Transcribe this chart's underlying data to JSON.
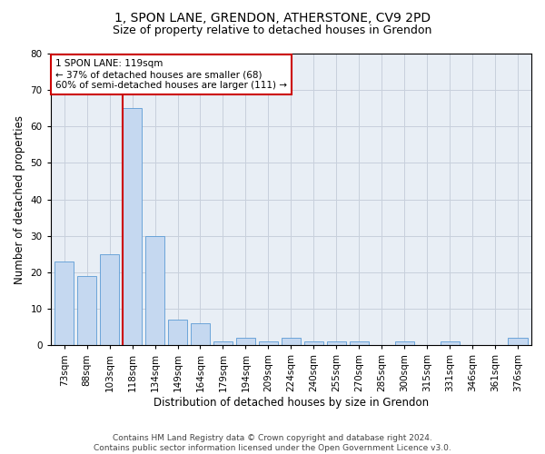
{
  "title1": "1, SPON LANE, GRENDON, ATHERSTONE, CV9 2PD",
  "title2": "Size of property relative to detached houses in Grendon",
  "xlabel": "Distribution of detached houses by size in Grendon",
  "ylabel": "Number of detached properties",
  "categories": [
    "73sqm",
    "88sqm",
    "103sqm",
    "118sqm",
    "134sqm",
    "149sqm",
    "164sqm",
    "179sqm",
    "194sqm",
    "209sqm",
    "224sqm",
    "240sqm",
    "255sqm",
    "270sqm",
    "285sqm",
    "300sqm",
    "315sqm",
    "331sqm",
    "346sqm",
    "361sqm",
    "376sqm"
  ],
  "values": [
    23,
    19,
    25,
    65,
    30,
    7,
    6,
    1,
    2,
    1,
    2,
    1,
    1,
    1,
    0,
    1,
    0,
    1,
    0,
    0,
    2
  ],
  "bar_color": "#c5d8f0",
  "bar_edge_color": "#5b9bd5",
  "annotation_line1": "1 SPON LANE: 119sqm",
  "annotation_line2": "← 37% of detached houses are smaller (68)",
  "annotation_line3": "60% of semi-detached houses are larger (111) →",
  "annotation_box_color": "#ffffff",
  "annotation_box_edge": "#cc0000",
  "property_line_color": "#cc0000",
  "property_bar_idx": 3,
  "ylim": [
    0,
    80
  ],
  "yticks": [
    0,
    10,
    20,
    30,
    40,
    50,
    60,
    70,
    80
  ],
  "grid_color": "#c8d0dc",
  "bg_color": "#e8eef5",
  "footer1": "Contains HM Land Registry data © Crown copyright and database right 2024.",
  "footer2": "Contains public sector information licensed under the Open Government Licence v3.0.",
  "title1_fontsize": 10,
  "title2_fontsize": 9,
  "xlabel_fontsize": 8.5,
  "ylabel_fontsize": 8.5,
  "tick_fontsize": 7.5,
  "annot_fontsize": 7.5,
  "footer_fontsize": 6.5
}
